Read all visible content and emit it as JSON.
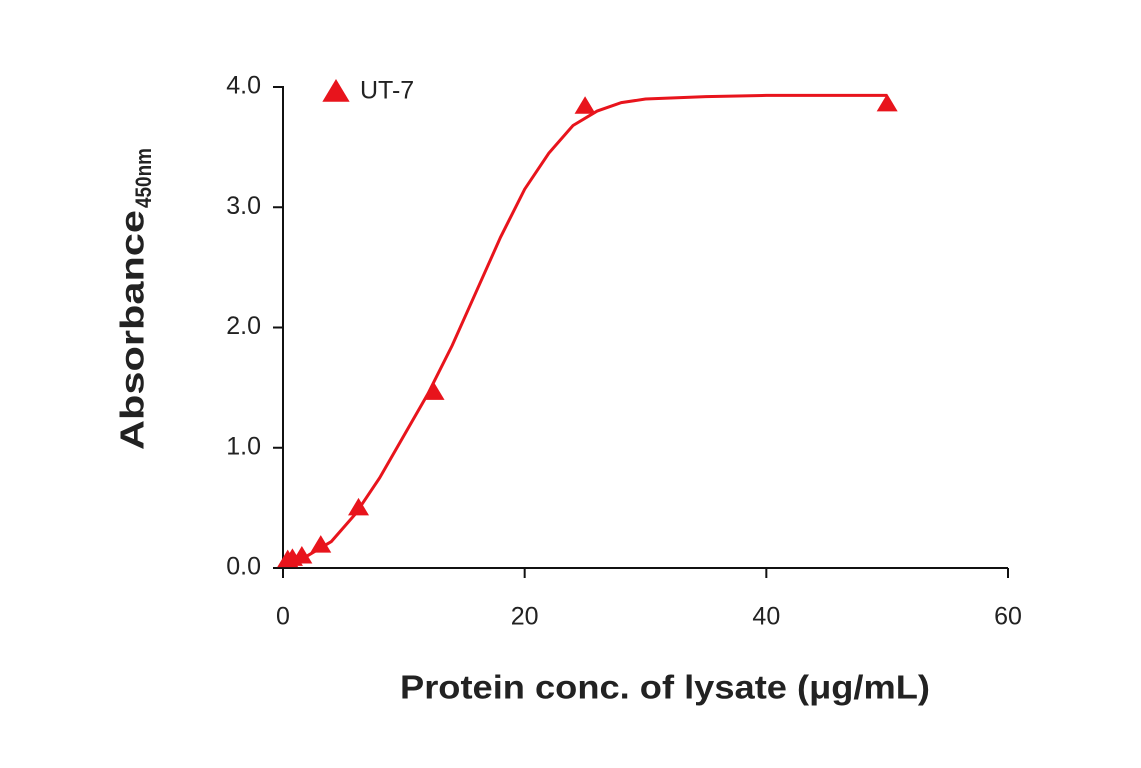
{
  "chart_data": {
    "type": "scatter",
    "x_label": "Protein conc. of lysate (μg/mL)",
    "y_label": "Absorbance",
    "y_label_subscript": "450nm",
    "series": [
      {
        "name": "UT-7",
        "color": "#e8141c",
        "marker": "triangle",
        "x": [
          0.39,
          0.78,
          1.56,
          3.125,
          6.25,
          12.5,
          25,
          50
        ],
        "values": [
          0.07,
          0.08,
          0.1,
          0.19,
          0.5,
          1.46,
          3.84,
          3.86
        ]
      }
    ],
    "fit": {
      "color": "#e8141c",
      "x": [
        0,
        2,
        4,
        6,
        8,
        10,
        12,
        14,
        16,
        18,
        20,
        22,
        24,
        26,
        28,
        30,
        35,
        40,
        45,
        50
      ],
      "values": [
        0.04,
        0.1,
        0.22,
        0.45,
        0.75,
        1.1,
        1.45,
        1.85,
        2.3,
        2.75,
        3.15,
        3.45,
        3.68,
        3.8,
        3.87,
        3.9,
        3.92,
        3.93,
        3.93,
        3.93
      ]
    },
    "xlim": [
      0,
      60
    ],
    "ylim": [
      0,
      4
    ],
    "xticks": [
      0,
      20,
      40,
      60
    ],
    "yticks": [
      {
        "value": 0,
        "label": "0.0"
      },
      {
        "value": 1,
        "label": "1.0"
      },
      {
        "value": 2,
        "label": "2.0"
      },
      {
        "value": 3,
        "label": "3.0"
      },
      {
        "value": 4,
        "label": "4.0"
      }
    ]
  }
}
